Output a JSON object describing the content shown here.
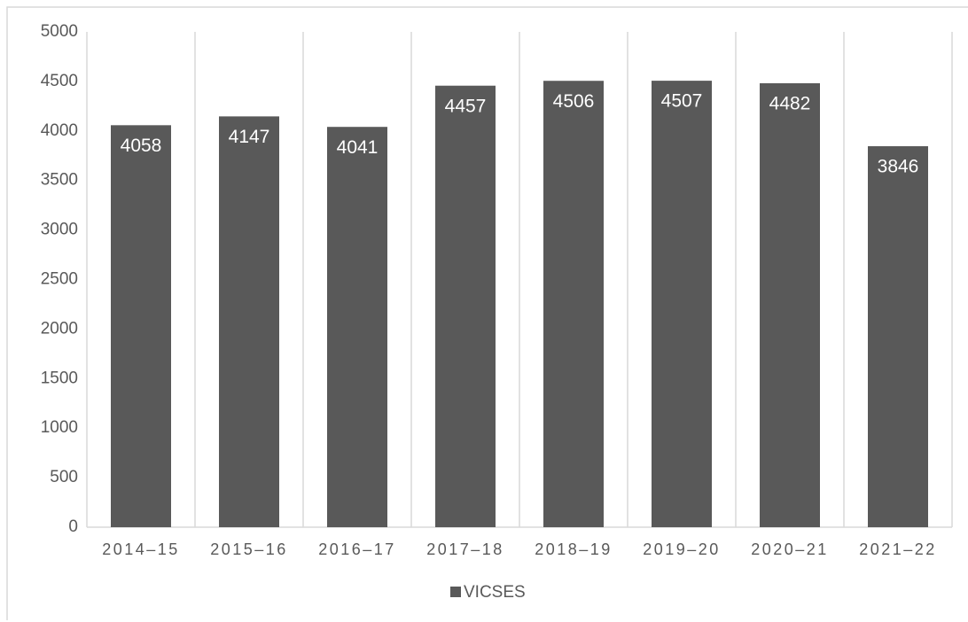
{
  "chart_data": {
    "type": "bar",
    "categories": [
      "2014–15",
      "2015–16",
      "2016–17",
      "2017–18",
      "2018–19",
      "2019–20",
      "2020–21",
      "2021–22"
    ],
    "series": [
      {
        "name": "VICSES",
        "color": "#595959",
        "values": [
          4058,
          4147,
          4041,
          4457,
          4506,
          4507,
          4482,
          3846
        ]
      }
    ],
    "ylim": [
      0,
      5000
    ],
    "yticks": [
      0,
      500,
      1000,
      1500,
      2000,
      2500,
      3000,
      3500,
      4000,
      4500,
      5000
    ],
    "grid": "x",
    "legend": "bottom"
  }
}
